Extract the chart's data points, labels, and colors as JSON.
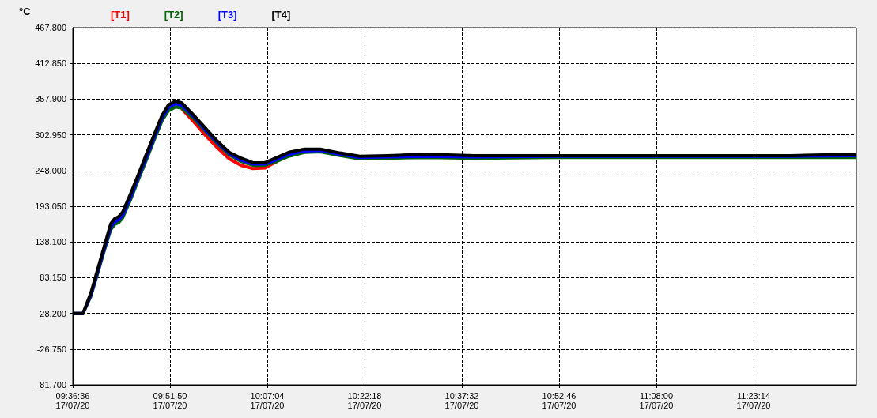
{
  "chart_data": {
    "type": "line",
    "ylabel": "°C",
    "legend": "top left",
    "grid": true,
    "x": [
      "--07-17T09:36:36",
      "--07-17T09:38:12",
      "--07-17T09:39:27",
      "--07-17T09:40:41",
      "--07-17T09:41:56",
      "--07-17T09:42:33",
      "--07-17T09:43:10",
      "--07-17T09:43:47",
      "--07-17T09:44:24",
      "--07-17T09:45:39",
      "--07-17T09:46:53",
      "--07-17T09:48:07",
      "--07-17T09:49:21",
      "--07-17T09:50:36",
      "--07-17T09:51:35",
      "--07-17T09:52:42",
      "--07-17T09:53:41",
      "--07-17T09:55:33",
      "--07-17T09:57:24",
      "--07-17T09:59:16",
      "--07-17T10:01:07",
      "--07-17T10:02:59",
      "--07-17T10:04:50",
      "--07-17T10:06:42",
      "--07-17T10:08:33",
      "--07-17T10:10:25",
      "--07-17T10:12:53",
      "--07-17T10:15:22",
      "--07-17T10:18:27",
      "--07-17T10:21:33",
      "--07-17T10:25:53",
      "--07-17T10:32:05",
      "--07-17T10:39:31",
      "--07-17T10:51:54",
      "--07-17T11:04:17",
      "--07-17T11:16:40",
      "--07-17T11:29:03",
      "--07-17T11:39:19"
    ],
    "series": [
      {
        "name": "[T1]",
        "color": "#ff0000",
        "values": [
          null,
          null,
          null,
          null,
          null,
          null,
          null,
          null,
          null,
          null,
          null,
          null,
          null,
          null,
          null,
          null,
          343,
          323,
          302,
          283,
          266,
          256,
          251,
          252,
          262,
          null,
          null,
          null,
          null,
          null,
          null,
          null,
          null,
          null,
          null,
          null,
          null,
          null
        ]
      },
      {
        "name": "[T2]",
        "color": "#006400",
        "values": [
          28,
          28,
          55,
          96,
          138,
          157,
          165,
          168,
          175,
          203,
          234,
          264,
          295,
          325,
          340,
          346,
          344,
          328,
          308,
          289,
          272,
          262,
          256,
          256,
          262,
          270,
          276,
          277,
          271,
          266,
          267,
          268,
          267,
          268,
          268,
          268,
          268,
          268
        ]
      },
      {
        "name": "[T3]",
        "color": "#0000ff",
        "values": [
          28,
          28,
          57,
          99,
          141,
          161,
          169,
          172,
          179,
          207,
          238,
          268,
          299,
          329,
          345,
          351,
          348,
          331,
          310,
          291,
          274,
          264,
          258,
          258,
          265,
          273,
          278,
          279,
          273,
          268,
          269,
          270,
          269,
          270,
          270,
          270,
          270,
          271
        ]
      },
      {
        "name": "[T4]",
        "color": "#000000",
        "values": [
          28,
          28,
          60,
          102,
          145,
          166,
          174,
          177,
          184,
          212,
          242,
          273,
          303,
          333,
          349,
          355,
          352,
          333,
          313,
          293,
          276,
          267,
          260,
          260,
          268,
          276,
          281,
          281,
          275,
          270,
          271,
          273,
          271,
          271,
          271,
          271,
          271,
          273
        ]
      }
    ],
    "xlim": [
      "--07-17T09:36:36",
      "--07-17T11:39:20"
    ],
    "xticks": [
      {
        "value": "--07-17T09:36:36",
        "label": "09:36:36\n17/07/20"
      },
      {
        "value": "--07-17T09:51:50",
        "label": "09:51:50\n17/07/20"
      },
      {
        "value": "--07-17T10:07:04",
        "label": "10:07:04\n17/07/20"
      },
      {
        "value": "--07-17T10:22:18",
        "label": "10:22:18\n17/07/20"
      },
      {
        "value": "--07-17T10:37:32",
        "label": "10:37:32\n17/07/20"
      },
      {
        "value": "--07-17T10:52:46",
        "label": "10:52:46\n17/07/20"
      },
      {
        "value": "--07-17T11:08:00",
        "label": "11:08:00\n17/07/20"
      },
      {
        "value": "--07-17T11:23:14",
        "label": "11:23:14\n17/07/20"
      }
    ],
    "ylim": [
      -81.7,
      467.8
    ],
    "yticks": [
      {
        "value": -81.7,
        "label": "-81.700"
      },
      {
        "value": -26.75,
        "label": "-26.750"
      },
      {
        "value": 28.2,
        "label": "28.200"
      },
      {
        "value": 83.15,
        "label": "83.150"
      },
      {
        "value": 138.1,
        "label": "138.100"
      },
      {
        "value": 193.05,
        "label": "193.050"
      },
      {
        "value": 248,
        "label": "248.000"
      },
      {
        "value": 302.95,
        "label": "302.950"
      },
      {
        "value": 357.9,
        "label": "357.900"
      },
      {
        "value": 412.85,
        "label": "412.850"
      },
      {
        "value": 467.8,
        "label": "467.800"
      }
    ]
  }
}
